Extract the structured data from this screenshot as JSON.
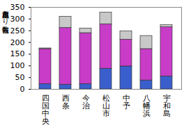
{
  "chart_data": {
    "type": "bar",
    "stacked": true,
    "y_label": "累積定点当たり報告数",
    "categories": [
      "四国中央",
      "西条",
      "今治",
      "松山市",
      "中予",
      "八幡浜",
      "宇和島"
    ],
    "series": [
      {
        "color": "#3a5fcd",
        "values": [
          22,
          20,
          22,
          88,
          98,
          38,
          55
        ]
      },
      {
        "color": "#c83cc8",
        "values": [
          150,
          242,
          218,
          190,
          114,
          134,
          210
        ]
      },
      {
        "color": "#c8c8c8",
        "values": [
          3,
          48,
          20,
          50,
          36,
          56,
          10
        ]
      }
    ],
    "ylim": [
      0,
      350
    ],
    "yticks": [
      0,
      50,
      100,
      150,
      200,
      250,
      300,
      350
    ]
  }
}
